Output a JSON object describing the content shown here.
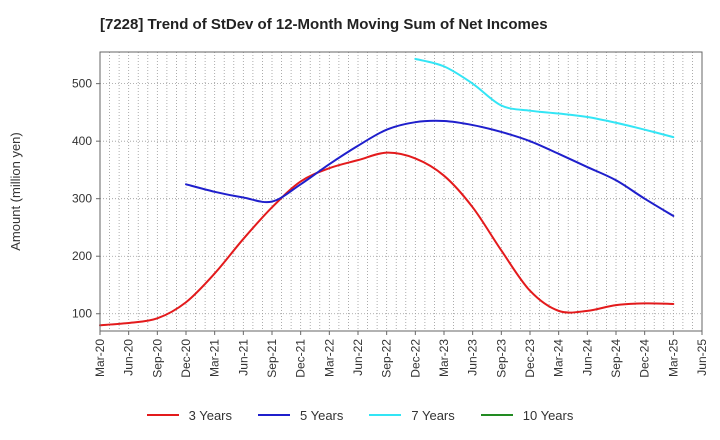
{
  "chart_data": {
    "type": "line",
    "title": "[7228]  Trend of StDev of 12-Month Moving Sum of Net Incomes",
    "xlabel": "",
    "ylabel": "Amount (million yen)",
    "categories": [
      "Mar-20",
      "Jun-20",
      "Sep-20",
      "Dec-20",
      "Mar-21",
      "Jun-21",
      "Sep-21",
      "Dec-21",
      "Mar-22",
      "Jun-22",
      "Sep-22",
      "Dec-22",
      "Mar-23",
      "Jun-23",
      "Sep-23",
      "Dec-23",
      "Mar-24",
      "Jun-24",
      "Sep-24",
      "Dec-24",
      "Mar-25",
      "Jun-25"
    ],
    "ylim": [
      70,
      555
    ],
    "yticks": [
      100,
      200,
      300,
      400,
      500
    ],
    "grid": true,
    "legend_position": "bottom",
    "series": [
      {
        "name": "3 Years",
        "color": "#e31a1c",
        "values": [
          80,
          84,
          92,
          120,
          170,
          230,
          285,
          330,
          353,
          367,
          380,
          370,
          340,
          285,
          210,
          140,
          105,
          105,
          115,
          118,
          117,
          null
        ]
      },
      {
        "name": "5 Years",
        "color": "#1f1fcc",
        "values": [
          null,
          null,
          null,
          325,
          312,
          302,
          295,
          325,
          360,
          392,
          420,
          433,
          435,
          428,
          416,
          400,
          378,
          355,
          332,
          300,
          270,
          null
        ]
      },
      {
        "name": "7 Years",
        "color": "#33e5f5",
        "values": [
          null,
          null,
          null,
          null,
          null,
          null,
          null,
          null,
          null,
          null,
          null,
          543,
          530,
          500,
          462,
          453,
          448,
          442,
          432,
          420,
          407,
          null
        ]
      },
      {
        "name": "10 Years",
        "color": "#228b22",
        "values": [
          null,
          null,
          null,
          null,
          null,
          null,
          null,
          null,
          null,
          null,
          null,
          null,
          null,
          null,
          null,
          null,
          null,
          null,
          null,
          null,
          null,
          null
        ]
      }
    ]
  }
}
